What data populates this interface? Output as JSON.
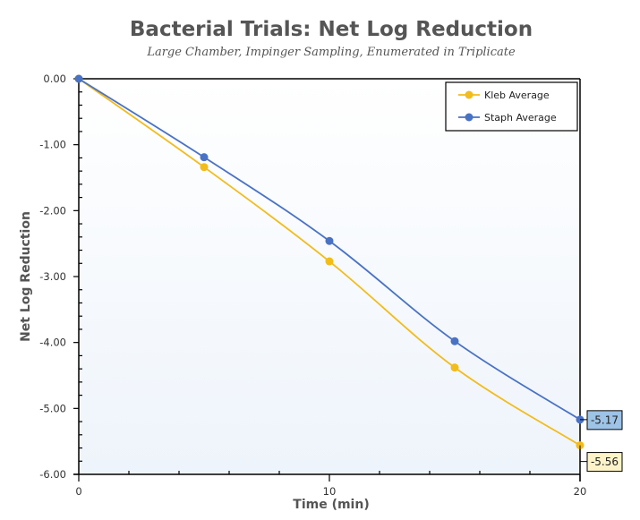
{
  "chart_data": {
    "type": "line",
    "title": "Bacterial Trials: Net Log Reduction",
    "subtitle": "Large Chamber, Impinger Sampling, Enumerated in Triplicate",
    "xlabel": "Time (min)",
    "ylabel": "Net Log Reduction",
    "xlim": [
      0,
      20
    ],
    "ylim": [
      -6,
      0
    ],
    "xticks": [
      0,
      10,
      20
    ],
    "xtick_labels": [
      "0",
      "10",
      "20"
    ],
    "yticks": [
      0,
      -1,
      -2,
      -3,
      -4,
      -5,
      -6
    ],
    "ytick_labels": [
      "0.00",
      "-1.00",
      "-2.00",
      "-3.00",
      "-4.00",
      "-5.00",
      "-6.00"
    ],
    "grid": false,
    "legend_position": "top-right",
    "x": [
      0,
      5,
      10,
      15,
      20
    ],
    "series": [
      {
        "name": "Kleb Average",
        "color": "#f2bc1b",
        "values": [
          0,
          -1.34,
          -2.77,
          -4.38,
          -5.56
        ],
        "end_label": "-5.56",
        "label_bg": "#fdf3c8"
      },
      {
        "name": "Staph Average",
        "color": "#4a72c4",
        "values": [
          0,
          -1.19,
          -2.46,
          -3.98,
          -5.17
        ],
        "end_label": "-5.17",
        "label_bg": "#9dc3e6"
      }
    ]
  }
}
